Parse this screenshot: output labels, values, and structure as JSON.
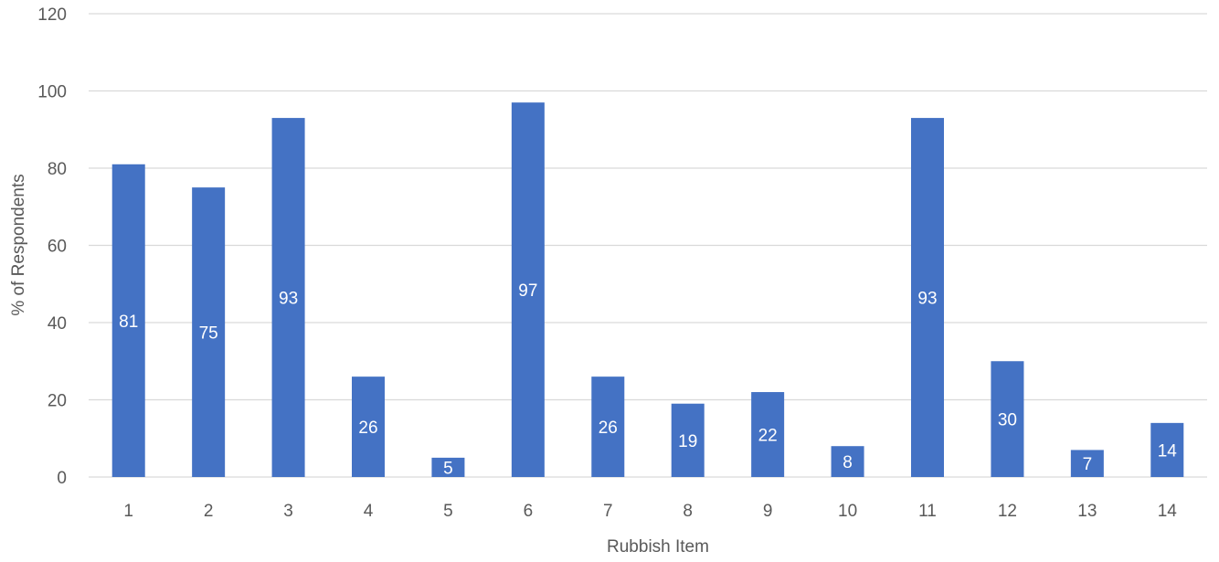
{
  "chart_data": {
    "type": "bar",
    "title": "",
    "xlabel": "Rubbish Item",
    "ylabel": "% of Respondents",
    "categories": [
      "1",
      "2",
      "3",
      "4",
      "5",
      "6",
      "7",
      "8",
      "9",
      "10",
      "11",
      "12",
      "13",
      "14"
    ],
    "values": [
      81,
      75,
      93,
      26,
      5,
      97,
      26,
      19,
      22,
      8,
      93,
      30,
      7,
      14
    ],
    "data_labels": [
      "81",
      "75",
      "93",
      "26",
      "5",
      "97",
      "26",
      "19",
      "22",
      "8",
      "93",
      "30",
      "7",
      "14"
    ],
    "y_ticks": [
      0,
      20,
      40,
      60,
      80,
      100,
      120
    ],
    "ylim": [
      0,
      120
    ],
    "grid": true,
    "legend": "none",
    "colors": {
      "bar": "#4472C4",
      "grid": "#D9D9D9",
      "axis_text": "#595959",
      "data_label": "#FFFFFF"
    }
  }
}
